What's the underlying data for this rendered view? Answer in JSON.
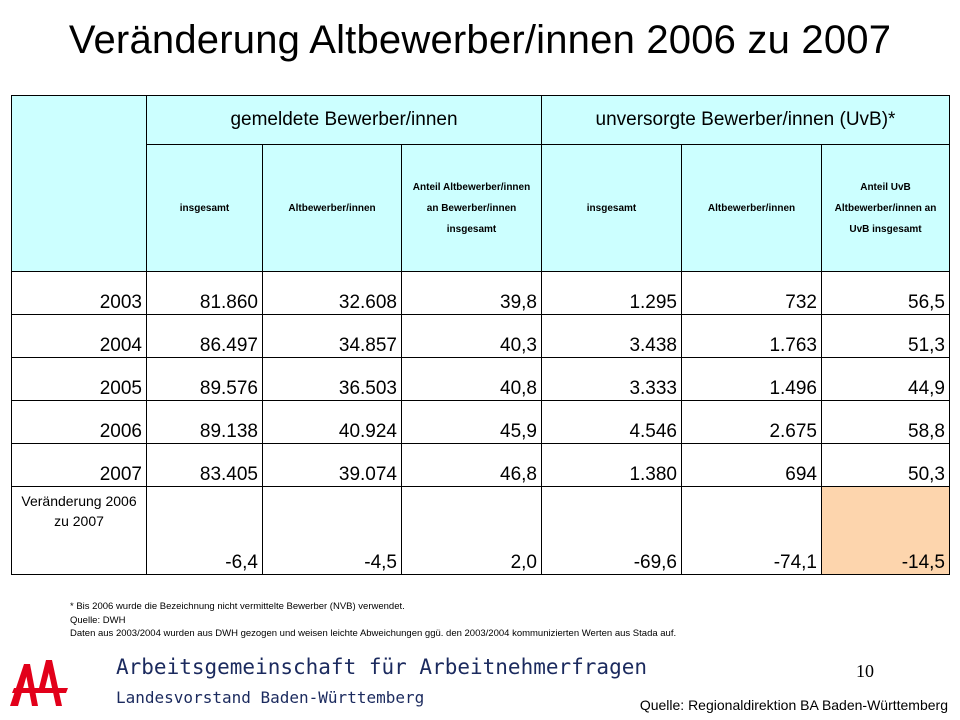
{
  "title": "Veränderung Altbewerber/innen 2006 zu 2007",
  "table": {
    "group_headers": [
      "gemeldete Bewerber/innen",
      "unversorgte Bewerber/innen (UvB)*"
    ],
    "sub_headers": [
      "insgesamt",
      "Altbewerber/innen",
      "Anteil Altbewerber/innen an Bewerber/innen insgesamt",
      "insgesamt",
      "Altbewerber/innen",
      "Anteil UvB Altbewerber/innen an UvB insgesamt"
    ],
    "rows": [
      {
        "year": "2003",
        "cells": [
          "81.860",
          "32.608",
          "39,8",
          "1.295",
          "732",
          "56,5"
        ]
      },
      {
        "year": "2004",
        "cells": [
          "86.497",
          "34.857",
          "40,3",
          "3.438",
          "1.763",
          "51,3"
        ]
      },
      {
        "year": "2005",
        "cells": [
          "89.576",
          "36.503",
          "40,8",
          "3.333",
          "1.496",
          "44,9"
        ]
      },
      {
        "year": "2006",
        "cells": [
          "89.138",
          "40.924",
          "45,9",
          "4.546",
          "2.675",
          "58,8"
        ]
      },
      {
        "year": "2007",
        "cells": [
          "83.405",
          "39.074",
          "46,8",
          "1.380",
          "694",
          "50,3"
        ]
      }
    ],
    "change_row": {
      "label": "Veränderung 2006 zu 2007",
      "cells": [
        "-6,4",
        "-4,5",
        "2,0",
        "-69,6",
        "-74,1",
        "-14,5"
      ]
    },
    "highlight_color": "#fdd5ad",
    "header_color": "#ccffff"
  },
  "footnotes": [
    "* Bis 2006 wurde die Bezeichnung nicht vermittelte Bewerber (NVB) verwendet.",
    "Quelle: DWH",
    "Daten aus 2003/2004 wurden aus DWH gezogen und weisen leichte Abweichungen ggü. den 2003/2004 kommunizierten Werten aus Stada auf."
  ],
  "footer": {
    "org_name": "Arbeitsgemeinschaft für Arbeitnehmerfragen",
    "org_sub": "Landesvorstand Baden-Württemberg",
    "logo_icon": "afa-logo-icon",
    "page_number": "10",
    "source": "Quelle: Regionaldirektion BA Baden-Württemberg"
  }
}
